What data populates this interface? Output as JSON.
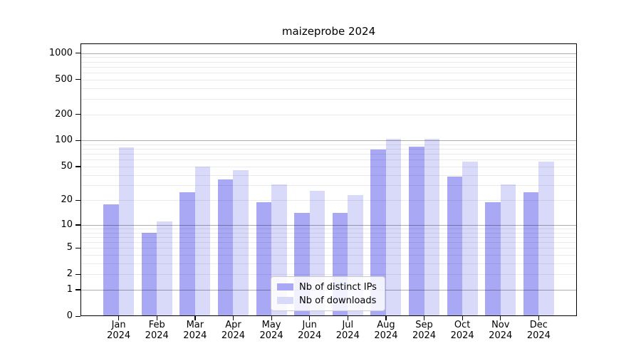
{
  "chart_data": {
    "type": "bar",
    "title": "maizeprobe 2024",
    "months": [
      "Jan",
      "Feb",
      "Mar",
      "Apr",
      "May",
      "Jun",
      "Jul",
      "Aug",
      "Sep",
      "Oct",
      "Nov",
      "Dec"
    ],
    "year": "2024",
    "series": [
      {
        "name": "Nb of distinct IPs",
        "color": "#a8a8f5",
        "values": [
          18,
          8,
          25,
          35,
          19,
          14,
          14,
          79,
          85,
          38,
          19,
          25
        ]
      },
      {
        "name": "Nb of downloads",
        "color": "#d9d9f9",
        "values": [
          84,
          11,
          50,
          45,
          31,
          26,
          23,
          105,
          105,
          57,
          31,
          57
        ]
      }
    ],
    "y_ticks": [
      0,
      1,
      2,
      5,
      10,
      20,
      50,
      100,
      200,
      500,
      1000
    ],
    "y_scale": "log10(value+1)",
    "ylim": [
      0,
      1280
    ],
    "xlabel": "",
    "ylabel": "",
    "grid": true,
    "legend_position": "lower center"
  }
}
